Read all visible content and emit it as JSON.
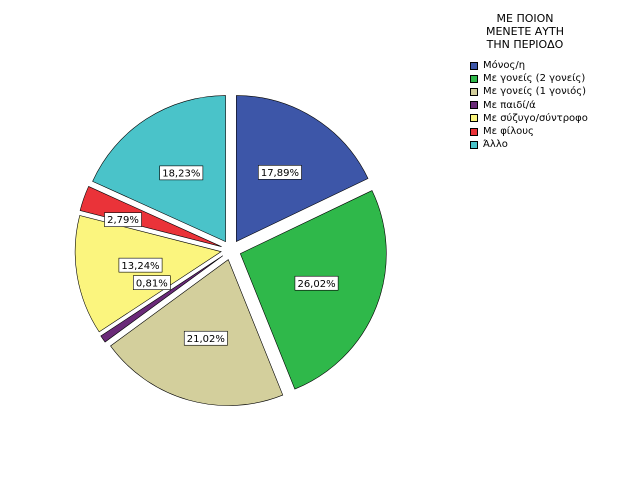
{
  "chart_data": {
    "type": "pie",
    "exploded": true,
    "legend_position": "top-right",
    "legend_title_lines": [
      "ΜΕ ΠΟΙΟΝ",
      "ΜΕΝΕΤΕ ΑΥΤΗ",
      "ΤΗΝ ΠΕΡΙΟΔΟ"
    ],
    "slices": [
      {
        "name": "Μόνος/η",
        "value": 17.89,
        "label": "17,89%",
        "color": "#3d56a8"
      },
      {
        "name": "Με γονείς (2 γονείς)",
        "value": 26.02,
        "label": "26,02%",
        "color": "#2fb84a"
      },
      {
        "name": "Με γονείς (1 γονιός)",
        "value": 21.02,
        "label": "21,02%",
        "color": "#d3cf9c"
      },
      {
        "name": "Με παιδί/ά",
        "value": 0.81,
        "label": "0,81%",
        "color": "#6a2a78"
      },
      {
        "name": "Με σύζυγο/σύντροφο",
        "value": 13.24,
        "label": "13,24%",
        "color": "#fbf57e"
      },
      {
        "name": "Με φίλους",
        "value": 2.79,
        "label": "2,79%",
        "color": "#ea3339"
      },
      {
        "name": "Άλλο",
        "value": 18.23,
        "label": "18,23%",
        "color": "#4ac3c9"
      }
    ]
  }
}
